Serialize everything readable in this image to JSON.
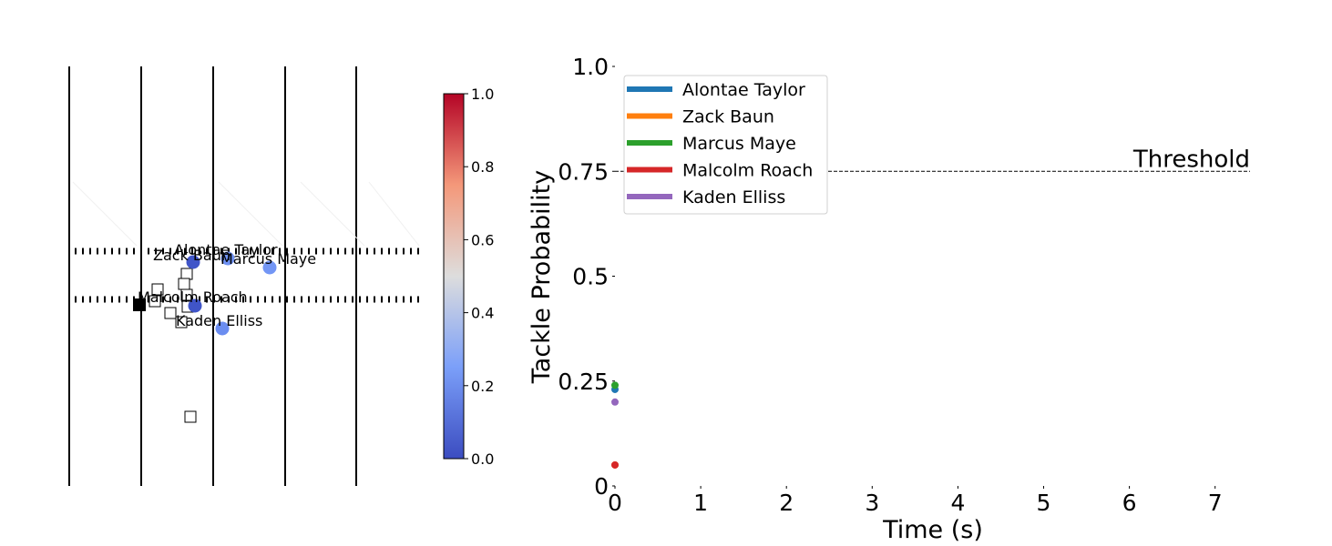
{
  "chart_data": [
    {
      "type": "scatter",
      "panel": "field",
      "colorbar": {
        "colormap": "coolwarm",
        "range": [
          0,
          1
        ],
        "ticks": [
          "0.0",
          "0.2",
          "0.4",
          "0.6",
          "0.8",
          "1.0"
        ]
      },
      "defenders": [
        {
          "name": "Alontae Taylor",
          "value": 0.23,
          "color": "#6f92f3"
        },
        {
          "name": "Zack Baun",
          "value": 0.05,
          "color": "#4055c8"
        },
        {
          "name": "Marcus Maye",
          "value": 0.24,
          "color": "#7396f5"
        },
        {
          "name": "Malcolm Roach",
          "value": 0.05,
          "color": "#4055c8"
        },
        {
          "name": "Kaden Elliss",
          "value": 0.2,
          "color": "#6b8df0"
        }
      ],
      "offense_markers": 12,
      "ball_carrier": "filled-square"
    },
    {
      "type": "line",
      "panel": "probability",
      "xlabel": "Time (s)",
      "ylabel": "Tackle Probability",
      "xlim": [
        0,
        7.4
      ],
      "ylim": [
        0,
        1.0
      ],
      "xticks": [
        "0",
        "1",
        "2",
        "3",
        "4",
        "5",
        "6",
        "7"
      ],
      "yticks": [
        "0",
        "0.25",
        "0.5",
        "0.75",
        "1.0"
      ],
      "threshold": {
        "value": 0.75,
        "label": "Threshold"
      },
      "legend_position": "top-left",
      "series": [
        {
          "name": "Alontae Taylor",
          "color": "#1f77b4",
          "x": [
            0
          ],
          "values": [
            0.23
          ]
        },
        {
          "name": "Zack Baun",
          "color": "#ff7f0e",
          "x": [
            0
          ],
          "values": [
            0.05
          ]
        },
        {
          "name": "Marcus Maye",
          "color": "#2ca02c",
          "x": [
            0
          ],
          "values": [
            0.24
          ]
        },
        {
          "name": "Malcolm Roach",
          "color": "#d62728",
          "x": [
            0
          ],
          "values": [
            0.05
          ]
        },
        {
          "name": "Kaden Elliss",
          "color": "#9467bd",
          "x": [
            0
          ],
          "values": [
            0.2
          ]
        }
      ]
    }
  ]
}
